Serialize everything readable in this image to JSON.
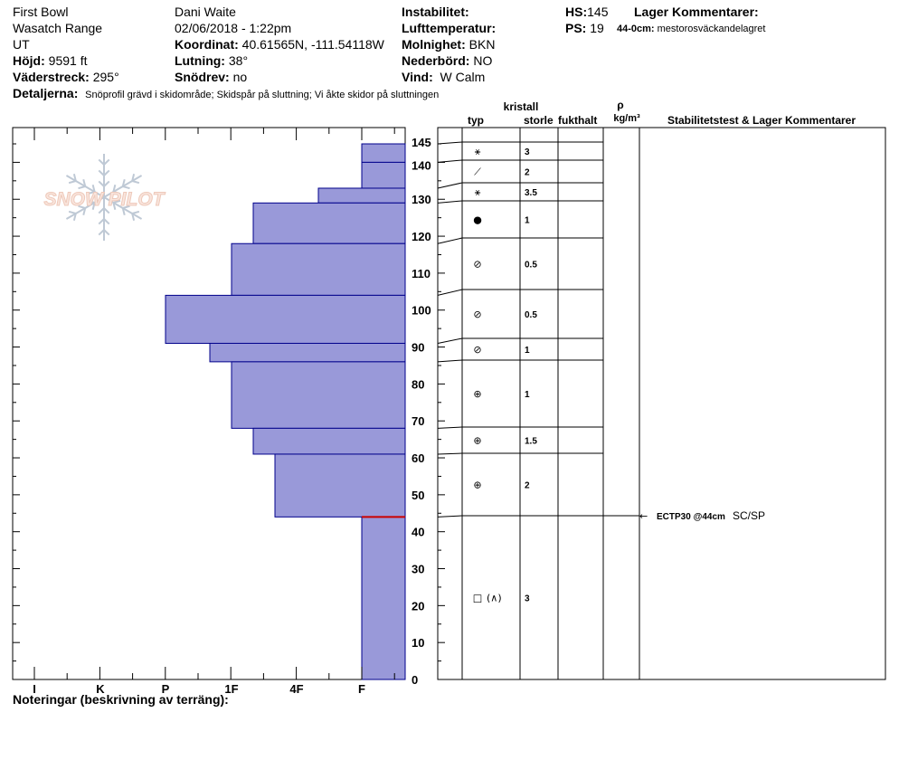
{
  "header": {
    "location": "First Bowl",
    "range": "Wasatch Range",
    "state": "UT",
    "elevation_label": "Höjd:",
    "elevation": "9591 ft",
    "aspect_label": "Väderstreck:",
    "aspect": "295°",
    "observer": "Dani Waite",
    "datetime": "02/06/2018 - 1:22pm",
    "coord_label": "Koordinat:",
    "coord": "40.61565N, -111.54118W",
    "slope_label": "Lutning:",
    "slope": "38°",
    "drift_label": "Snödrev:",
    "drift": "no",
    "instability_label": "Instabilitet:",
    "airtemp_label": "Lufttemperatur:",
    "sky_label": "Molnighet:",
    "sky": "BKN",
    "precip_label": "Nederbörd:",
    "precip": "NO",
    "wind_label": "Vind:",
    "wind": "W Calm",
    "hs_label": "HS:",
    "hs": "145",
    "ps_label": "PS:",
    "ps": "19",
    "layer_comments_label": "Lager Kommentarer:",
    "layer_comment_depth": "44-0cm:",
    "layer_comment_text": "mestorosväckandelagret",
    "details_label": "Detaljerna:",
    "details": "Snöprofil grävd i skidområde;  Skidspår på sluttning;  Vi åkte skidor på sluttningen"
  },
  "logo_text": "SNOW PILOT",
  "columns": {
    "crystal": "kristall",
    "type": "typ",
    "size": "storlek",
    "moisture": "fukthalt",
    "rho": "ρ",
    "density_unit": "kg/m³",
    "stability": "Stabilitetstest & Lager Kommentarer"
  },
  "footer": {
    "notes_label": "Noteringar (beskrivning av terräng):"
  },
  "colors": {
    "layer_fill": "#9999d9",
    "layer_edge": "#00008b",
    "weak_layer": "#cc0000"
  },
  "chart_data": {
    "type": "bar",
    "orientation": "horizontal",
    "ylabel": "",
    "ylim": [
      0,
      145
    ],
    "y_ticks": [
      0,
      10,
      20,
      30,
      40,
      50,
      60,
      70,
      80,
      90,
      100,
      110,
      120,
      130,
      140,
      145
    ],
    "hardness_categories": [
      "I",
      "K",
      "P",
      "1F",
      "4F",
      "F"
    ],
    "layers": [
      {
        "top": 145,
        "bottom": 140,
        "hardness": "F",
        "crystal_icon": "stellar",
        "size": "3"
      },
      {
        "top": 140,
        "bottom": 133,
        "hardness": "F",
        "crystal_icon": "decomposing",
        "size": "2"
      },
      {
        "top": 133,
        "bottom": 129,
        "hardness": "4F-",
        "crystal_icon": "stellar",
        "size": "3.5"
      },
      {
        "top": 129,
        "bottom": 118,
        "hardness": "1F-",
        "crystal_icon": "rounded",
        "size": "1"
      },
      {
        "top": 118,
        "bottom": 104,
        "hardness": "1F",
        "crystal_icon": "rounding",
        "size": "0.5"
      },
      {
        "top": 104,
        "bottom": 91,
        "hardness": "P",
        "crystal_icon": "rounding",
        "size": "0.5"
      },
      {
        "top": 91,
        "bottom": 86,
        "hardness": "1F+",
        "crystal_icon": "rounding",
        "size": "1"
      },
      {
        "top": 86,
        "bottom": 68,
        "hardness": "1F",
        "crystal_icon": "faceted-rounded",
        "size": "1"
      },
      {
        "top": 68,
        "bottom": 61,
        "hardness": "1F-",
        "crystal_icon": "faceted-rounded",
        "size": "1.5"
      },
      {
        "top": 61,
        "bottom": 44,
        "hardness": "4F+",
        "crystal_icon": "faceted-rounded",
        "size": "2"
      },
      {
        "top": 44,
        "bottom": 0,
        "hardness": "F",
        "crystal_icon": "facet-depth-hoar",
        "size": "3",
        "crystal_text": "(∧)"
      }
    ],
    "stability_tests": [
      {
        "depth": 44,
        "test": "ECTP30 @44cm",
        "note": "SC/SP"
      }
    ]
  }
}
